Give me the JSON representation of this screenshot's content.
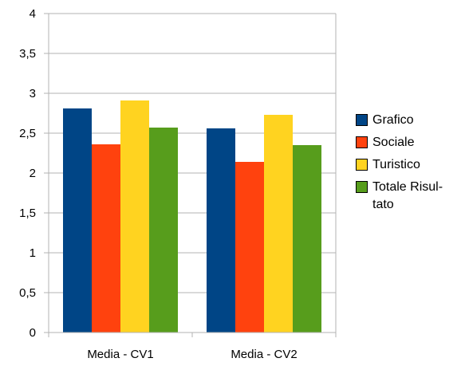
{
  "colors": {
    "grafico": "#004586",
    "sociale": "#ff420e",
    "turistico": "#ffd320",
    "totale": "#579d1c",
    "grid": "#b3b3b3",
    "axis": "#b3b3b3"
  },
  "chart_data": {
    "type": "bar",
    "categories": [
      "Media - CV1",
      "Media - CV2"
    ],
    "series": [
      {
        "name": "Grafico",
        "values": [
          2.81,
          2.56
        ]
      },
      {
        "name": "Sociale",
        "values": [
          2.36,
          2.14
        ]
      },
      {
        "name": "Turistico",
        "values": [
          2.91,
          2.73
        ]
      },
      {
        "name": "Totale Risul-tato",
        "values": [
          2.57,
          2.35
        ]
      }
    ],
    "y_ticks": [
      "0",
      "0,5",
      "1",
      "1,5",
      "2",
      "2,5",
      "3",
      "3,5",
      "4"
    ],
    "ylim": [
      0,
      4
    ],
    "grid": true,
    "legend_position": "right"
  },
  "legend": {
    "items": [
      {
        "label": "Grafico",
        "color": "#004586"
      },
      {
        "label": "Sociale",
        "color": "#ff420e"
      },
      {
        "label": "Turistico",
        "color": "#ffd320"
      },
      {
        "label": "Totale Risul-tato",
        "color": "#579d1c"
      }
    ]
  }
}
